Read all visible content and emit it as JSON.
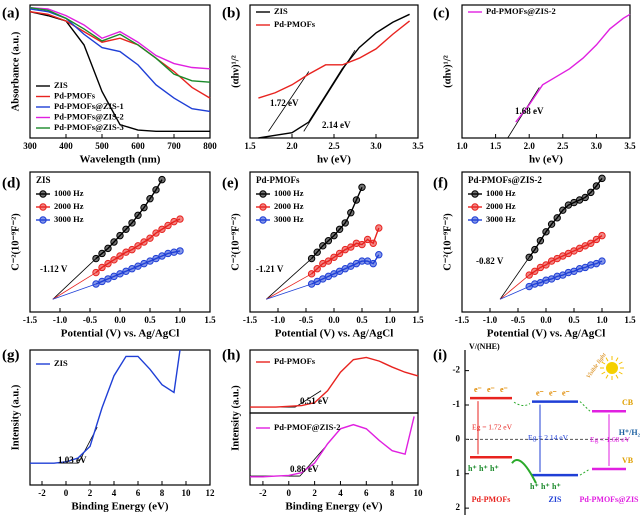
{
  "chart_data": [
    {
      "type": "line",
      "label": "(a)",
      "xlabel": "Wavelength (nm)",
      "ylabel": "Absorbance (a.u.)",
      "x": [
        300,
        350,
        400,
        450,
        500,
        550,
        600,
        650,
        700,
        750,
        800
      ],
      "xlim": [
        300,
        800
      ],
      "ylim": [
        0,
        1
      ],
      "xticks": [
        300,
        400,
        500,
        600,
        700,
        800
      ],
      "legend": "lower left",
      "series": [
        {
          "name": "ZIS",
          "color": "#000000",
          "values": [
            0.95,
            0.92,
            0.88,
            0.7,
            0.35,
            0.1,
            0.06,
            0.05,
            0.05,
            0.05,
            0.05
          ]
        },
        {
          "name": "Pd-PMOFs",
          "color": "#e8231f",
          "values": [
            0.95,
            0.93,
            0.88,
            0.8,
            0.72,
            0.75,
            0.7,
            0.6,
            0.5,
            0.38,
            0.3
          ]
        },
        {
          "name": "Pd-PMOFs@ZIS-1",
          "color": "#1f3fd6",
          "values": [
            0.97,
            0.95,
            0.9,
            0.78,
            0.68,
            0.65,
            0.55,
            0.4,
            0.3,
            0.22,
            0.2
          ]
        },
        {
          "name": "Pd-PMOFs@ZIS-2",
          "color": "#e020e0",
          "values": [
            0.98,
            0.97,
            0.92,
            0.85,
            0.75,
            0.8,
            0.72,
            0.62,
            0.56,
            0.53,
            0.52
          ]
        },
        {
          "name": "Pd-PMOFs@ZIS-3",
          "color": "#1a8a2a",
          "values": [
            0.98,
            0.96,
            0.9,
            0.82,
            0.73,
            0.78,
            0.7,
            0.6,
            0.48,
            0.43,
            0.42
          ]
        }
      ]
    },
    {
      "type": "line",
      "label": "(b)",
      "xlabel": "hν (eV)",
      "ylabel": "(αhν)¹/²",
      "x": [
        1.6,
        1.8,
        2.0,
        2.2,
        2.4,
        2.6,
        2.8,
        3.0,
        3.2,
        3.4
      ],
      "xlim": [
        1.5,
        3.5
      ],
      "ylim": [
        0,
        1
      ],
      "xticks": [
        1.5,
        {
          "value": 2,
          "label": "2.0"
        },
        2.5,
        {
          "value": 3,
          "label": "3.0"
        },
        3.5
      ],
      "legend": "upper left",
      "series": [
        {
          "name": "ZIS",
          "color": "#000000",
          "values": [
            0.0,
            0.02,
            0.04,
            0.12,
            0.32,
            0.52,
            0.68,
            0.79,
            0.87,
            0.93
          ]
        },
        {
          "name": "Pd-PMOFs",
          "color": "#e8231f",
          "values": [
            0.3,
            0.34,
            0.4,
            0.48,
            0.55,
            0.55,
            0.6,
            0.67,
            0.78,
            0.88
          ]
        }
      ],
      "fits": [
        {
          "color": "#000000",
          "x": [
            2.14,
            2.75
          ],
          "values": [
            0.05,
            0.66
          ]
        },
        {
          "color": "#000000",
          "x": [
            1.72,
            2.2
          ],
          "values": [
            0.05,
            0.5
          ]
        }
      ],
      "annotations": [
        "1.72 eV",
        "2.14 eV"
      ]
    },
    {
      "type": "line",
      "label": "(c)",
      "xlabel": "hν (eV)",
      "ylabel": "(αhν)¹/²",
      "x": [
        1.8,
        2.0,
        2.2,
        2.4,
        2.6,
        2.8,
        3.0,
        3.2,
        3.4,
        3.5
      ],
      "xlim": [
        1.0,
        3.5
      ],
      "ylim": [
        0,
        1
      ],
      "xticks": [
        {
          "value": 1,
          "label": "1.0"
        },
        1.5,
        {
          "value": 2,
          "label": "2.0"
        },
        2.5,
        {
          "value": 3,
          "label": "3.0"
        },
        3.5
      ],
      "legend": "upper left",
      "series": [
        {
          "name": "Pd-PMOFs@ZIS-2",
          "color": "#e020e0",
          "values": [
            0.12,
            0.25,
            0.4,
            0.46,
            0.52,
            0.6,
            0.7,
            0.82,
            0.9,
            0.93
          ]
        }
      ],
      "fits": [
        {
          "color": "#000000",
          "x": [
            1.68,
            2.15
          ],
          "values": [
            0.0,
            0.38
          ]
        }
      ],
      "annotations": [
        "1.68 eV"
      ]
    },
    {
      "type": "line",
      "label": "(d)",
      "title": "ZIS",
      "markers": true,
      "xlabel": "Potential (V) vs. Ag/AgCl",
      "ylabel": "C⁻²(10⁻⁹F⁻²)",
      "xlim": [
        -1.5,
        1.5
      ],
      "ylim": [
        -1,
        10
      ],
      "xticks": [
        -1.5,
        {
          "value": -1,
          "label": "-1.0"
        },
        -0.5,
        {
          "value": 0,
          "label": "0.0"
        },
        0.5,
        {
          "value": 1,
          "label": "1.0"
        },
        1.5
      ],
      "legend": "upper left",
      "series": [
        {
          "name": "1000 Hz",
          "color": "#000000",
          "x": [
            -0.4,
            -0.3,
            -0.2,
            -0.1,
            0,
            0.1,
            0.2,
            0.3,
            0.4,
            0.5,
            0.6,
            0.7
          ],
          "values": [
            3.2,
            3.6,
            4.0,
            4.5,
            5.0,
            5.5,
            6.0,
            6.6,
            7.2,
            7.9,
            8.6,
            9.4
          ]
        },
        {
          "name": "2000 Hz",
          "color": "#e8231f",
          "x": [
            -0.4,
            -0.3,
            -0.2,
            -0.1,
            0,
            0.1,
            0.2,
            0.3,
            0.4,
            0.5,
            0.6,
            0.7,
            0.8,
            0.9,
            1.0
          ],
          "values": [
            2.1,
            2.5,
            2.8,
            3.1,
            3.4,
            3.7,
            3.9,
            4.2,
            4.5,
            4.8,
            5.2,
            5.5,
            5.8,
            6.1,
            6.3
          ]
        },
        {
          "name": "3000 Hz",
          "color": "#1f3fd6",
          "x": [
            -0.4,
            -0.3,
            -0.2,
            -0.1,
            0,
            0.1,
            0.2,
            0.3,
            0.4,
            0.5,
            0.6,
            0.7,
            0.8,
            0.9,
            1.0
          ],
          "values": [
            1.2,
            1.4,
            1.6,
            1.8,
            2.0,
            2.2,
            2.4,
            2.6,
            2.8,
            3.0,
            3.2,
            3.4,
            3.6,
            3.7,
            3.8
          ]
        }
      ],
      "fits": [
        {
          "color": "#000000",
          "x": [
            -1.12,
            -0.4
          ],
          "values": [
            0,
            3.2
          ]
        },
        {
          "color": "#e8231f",
          "x": [
            -1.12,
            -0.4
          ],
          "values": [
            0,
            2.1
          ]
        },
        {
          "color": "#1f3fd6",
          "x": [
            -1.12,
            -0.4
          ],
          "values": [
            0,
            1.2
          ]
        }
      ],
      "annotations": [
        "-1.12 V"
      ]
    },
    {
      "type": "line",
      "label": "(e)",
      "title": "Pd-PMOFs",
      "markers": true,
      "xlabel": "Potential (V) vs. Ag/AgCl",
      "ylabel": "C⁻²(10⁻⁹F⁻²)",
      "xlim": [
        -1.5,
        1.5
      ],
      "ylim": [
        -1,
        10
      ],
      "xticks": [
        -1.5,
        {
          "value": -1,
          "label": "-1.0"
        },
        -0.5,
        {
          "value": 0,
          "label": "0.0"
        },
        0.5,
        {
          "value": 1,
          "label": "1.0"
        },
        1.5
      ],
      "legend": "upper left",
      "series": [
        {
          "name": "1000 Hz",
          "color": "#000000",
          "x": [
            -0.4,
            -0.3,
            -0.2,
            -0.1,
            0,
            0.1,
            0.2,
            0.3,
            0.4,
            0.5
          ],
          "values": [
            3.2,
            3.7,
            4.2,
            4.6,
            5.0,
            5.5,
            6.0,
            6.8,
            7.8,
            8.8
          ]
        },
        {
          "name": "2000 Hz",
          "color": "#e8231f",
          "x": [
            -0.4,
            -0.3,
            -0.2,
            -0.1,
            0,
            0.1,
            0.2,
            0.3,
            0.4,
            0.5,
            0.6,
            0.7,
            0.8
          ],
          "values": [
            2.0,
            2.4,
            2.8,
            3.0,
            3.3,
            3.6,
            3.9,
            4.1,
            4.4,
            4.3,
            4.7,
            4.4,
            5.6
          ]
        },
        {
          "name": "3000 Hz",
          "color": "#1f3fd6",
          "x": [
            -0.4,
            -0.3,
            -0.2,
            -0.1,
            0,
            0.1,
            0.2,
            0.3,
            0.4,
            0.5,
            0.6,
            0.7,
            0.8
          ],
          "values": [
            1.2,
            1.4,
            1.6,
            1.8,
            2.0,
            2.2,
            2.4,
            2.6,
            2.8,
            3.0,
            3.0,
            2.8,
            3.5
          ]
        }
      ],
      "fits": [
        {
          "color": "#000000",
          "x": [
            -1.21,
            -0.4
          ],
          "values": [
            0,
            3.2
          ]
        },
        {
          "color": "#e8231f",
          "x": [
            -1.21,
            -0.4
          ],
          "values": [
            0,
            2.0
          ]
        },
        {
          "color": "#1f3fd6",
          "x": [
            -1.21,
            -0.4
          ],
          "values": [
            0,
            1.2
          ]
        }
      ],
      "annotations": [
        "-1.21 V"
      ]
    },
    {
      "type": "line",
      "label": "(f)",
      "title": "Pd-PMOFs@ZIS-2",
      "markers": true,
      "xlabel": "Potential (V) vs. Ag/AgCl",
      "ylabel": "C⁻²(10⁻⁹F⁻²)",
      "xlim": [
        -1.5,
        1.5
      ],
      "ylim": [
        -1,
        10
      ],
      "xticks": [
        -1.5,
        {
          "value": -1,
          "label": "-1.0"
        },
        -0.5,
        {
          "value": 0,
          "label": "0.0"
        },
        0.5,
        {
          "value": 1,
          "label": "1.0"
        },
        1.5
      ],
      "legend": "upper left",
      "series": [
        {
          "name": "1000 Hz",
          "color": "#000000",
          "x": [
            -0.3,
            -0.2,
            -0.1,
            0,
            0.1,
            0.2,
            0.3,
            0.4,
            0.5,
            0.6,
            0.7,
            0.8,
            0.9,
            1.0
          ],
          "values": [
            3.3,
            3.9,
            4.6,
            5.3,
            5.9,
            6.4,
            7.0,
            7.4,
            7.6,
            7.8,
            8.0,
            8.4,
            8.9,
            9.5
          ]
        },
        {
          "name": "2000 Hz",
          "color": "#e8231f",
          "x": [
            -0.3,
            -0.2,
            -0.1,
            0,
            0.1,
            0.2,
            0.3,
            0.4,
            0.5,
            0.6,
            0.7,
            0.8,
            0.9,
            1.0
          ],
          "values": [
            1.9,
            2.2,
            2.5,
            2.7,
            3.0,
            3.2,
            3.4,
            3.6,
            3.8,
            4.0,
            4.2,
            4.4,
            4.7,
            5.0
          ]
        },
        {
          "name": "3000 Hz",
          "color": "#1f3fd6",
          "x": [
            -0.3,
            -0.2,
            -0.1,
            0,
            0.1,
            0.2,
            0.3,
            0.4,
            0.5,
            0.6,
            0.7,
            0.8,
            0.9,
            1.0
          ],
          "values": [
            1.0,
            1.2,
            1.3,
            1.5,
            1.6,
            1.8,
            1.9,
            2.1,
            2.2,
            2.4,
            2.5,
            2.7,
            2.8,
            3.0
          ]
        }
      ],
      "fits": [
        {
          "color": "#000000",
          "x": [
            -0.82,
            -0.3
          ],
          "values": [
            0,
            3.3
          ]
        },
        {
          "color": "#e8231f",
          "x": [
            -0.82,
            -0.3
          ],
          "values": [
            0,
            1.9
          ]
        },
        {
          "color": "#1f3fd6",
          "x": [
            -0.82,
            -0.3
          ],
          "values": [
            0,
            1.0
          ]
        }
      ],
      "annotations": [
        "-0.82 V"
      ]
    },
    {
      "type": "line",
      "label": "(g)",
      "xlabel": "Binding Energy (eV)",
      "ylabel": "Intensity (a.u.)",
      "x": [
        -3,
        -2,
        -1,
        0,
        1,
        2,
        3,
        4,
        5,
        6,
        7,
        8,
        9,
        9.5
      ],
      "xlim": [
        -3,
        12
      ],
      "ylim": [
        0,
        1.05
      ],
      "xticks": [
        -2,
        0,
        2,
        4,
        6,
        8,
        10,
        12
      ],
      "legend": "upper left",
      "series": [
        {
          "name": "ZIS",
          "color": "#1f3fd6",
          "values": [
            0.17,
            0.17,
            0.17,
            0.18,
            0.21,
            0.3,
            0.6,
            0.85,
            1.0,
            1.0,
            0.9,
            0.78,
            0.72,
            1.05
          ]
        }
      ],
      "fits": [
        {
          "color": "#000000",
          "x": [
            -3,
            1.03
          ],
          "values": [
            0.17,
            0.17
          ]
        },
        {
          "color": "#000000",
          "x": [
            1.03,
            2.6
          ],
          "values": [
            0.17,
            0.45
          ]
        }
      ],
      "annotations": [
        "1.03 eV"
      ]
    },
    {
      "type": "line",
      "label": "(h)",
      "x": [
        -3,
        -2,
        -1,
        0,
        1,
        2,
        3,
        4,
        5,
        6,
        7,
        8,
        9,
        10
      ],
      "xlim": [
        -3,
        10
      ],
      "ylim": [
        0,
        0.85
      ],
      "legend": "upper left",
      "series": [
        {
          "name": "Pd-PMOFs",
          "color": "#e8231f",
          "values": [
            0.08,
            0.08,
            0.08,
            0.09,
            0.1,
            0.14,
            0.3,
            0.55,
            0.72,
            0.75,
            0.7,
            0.62,
            0.55,
            0.5
          ]
        }
      ],
      "fits": [
        {
          "color": "#000000",
          "x": [
            -3,
            0.51
          ],
          "values": [
            0.08,
            0.08
          ]
        },
        {
          "color": "#000000",
          "x": [
            0.51,
            2.5
          ],
          "values": [
            0.08,
            0.3
          ]
        }
      ],
      "annotations": [
        "0.51 eV"
      ]
    },
    {
      "type": "line",
      "xlabel": "Binding Energy (eV)",
      "ylabel": "Intensity (a.u.)",
      "x": [
        -3,
        -2,
        -1,
        0,
        1,
        2,
        3,
        4,
        5,
        6,
        7,
        8,
        9,
        9.7
      ],
      "xlim": [
        -3,
        10
      ],
      "ylim": [
        0,
        1.05
      ],
      "xticks": [
        -2,
        0,
        2,
        4,
        6,
        8,
        10
      ],
      "legend": "upper left",
      "series": [
        {
          "name": "Pd-PMOF@ZIS-2",
          "color": "#e020e0",
          "values": [
            0.12,
            0.12,
            0.13,
            0.14,
            0.18,
            0.32,
            0.6,
            0.82,
            0.88,
            0.82,
            0.65,
            0.5,
            0.45,
            1.0
          ]
        }
      ],
      "fits": [
        {
          "color": "#000000",
          "x": [
            -3,
            0.86
          ],
          "values": [
            0.13,
            0.13
          ]
        },
        {
          "color": "#000000",
          "x": [
            0.86,
            2.8
          ],
          "values": [
            0.13,
            0.55
          ]
        }
      ],
      "annotations": [
        "0.86 eV"
      ]
    },
    {
      "type": "band",
      "label": "(i)",
      "ylabel": "V/(NHE)",
      "ylim": [
        -2.6,
        2.2
      ],
      "yticks": [
        -2,
        -1,
        0,
        1,
        2
      ],
      "reference": {
        "value": 0,
        "label": "H⁺/H₂"
      },
      "cb_label": "CB",
      "vb_label": "VB",
      "electron": "e⁻",
      "hole": "h⁺",
      "light_label": "Visible light",
      "materials": [
        {
          "name": "Pd-PMOFs",
          "cb": -1.2,
          "vb": 0.52,
          "eg_label": "Eg = 1.72 eV",
          "color": "#e8231f"
        },
        {
          "name": "ZIS",
          "cb": -1.1,
          "vb": 1.04,
          "eg_label": "Eg = 2.14 eV",
          "color": "#1f3fd6"
        },
        {
          "name": "Pd-PMOFs@ZIS",
          "cb": -0.82,
          "vb": 0.86,
          "eg_label": "Eg = 1.68 eV",
          "color": "#e020e0"
        }
      ]
    }
  ]
}
